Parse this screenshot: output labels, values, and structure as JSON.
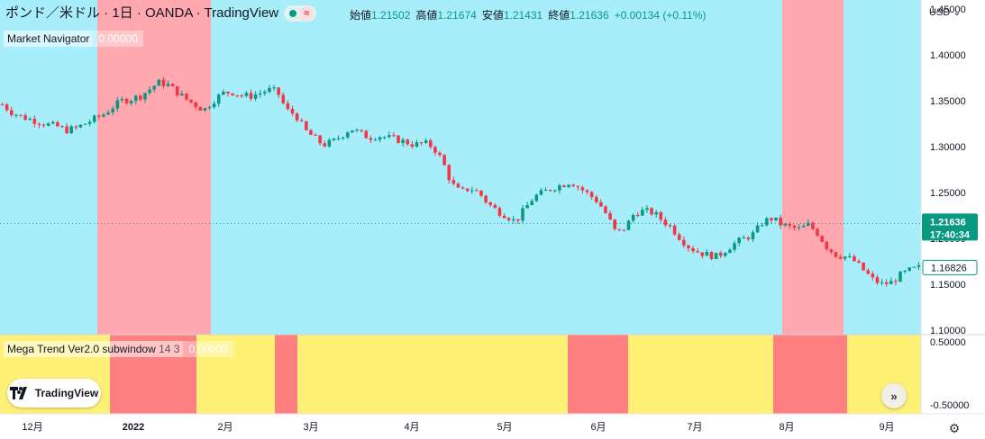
{
  "header": {
    "symbol_title": "ポンド／米ドル · 1日 · OANDA · TradingView",
    "approx_icon": "≈",
    "status_color": "#089981"
  },
  "ohlc": {
    "open_label": "始値",
    "open": "1.21502",
    "high_label": "高値",
    "high": "1.21674",
    "low_label": "安値",
    "low": "1.21431",
    "close_label": "終値",
    "close": "1.21636",
    "change": "+0.00134 (+0.11%)"
  },
  "indicator_main": {
    "name": "Market Navigator",
    "value": "0.00000"
  },
  "indicator_sub": {
    "name": "Mega Trend Ver2.0 subwindow",
    "params": "14 3",
    "value": "0.00000"
  },
  "price_axis": {
    "currency": "USD",
    "ticks": [
      "1.45000",
      "1.40000",
      "1.35000",
      "1.30000",
      "1.25000",
      "1.20000",
      "1.15000",
      "1.10000"
    ],
    "last_price": "1.21636",
    "countdown": "17:40:34",
    "marker_price": "1.16826"
  },
  "sub_axis": {
    "ticks": [
      "0.50000",
      "-0.50000"
    ]
  },
  "time_axis": {
    "labels": [
      "12月",
      "2022",
      "2月",
      "3月",
      "4月",
      "5月",
      "6月",
      "7月",
      "8月",
      "9月"
    ]
  },
  "logo": {
    "text": "TradingView"
  },
  "colors": {
    "background_bull": "#a8eefa",
    "background_bear": "#ffa8b0",
    "sub_yellow": "#fff176",
    "sub_red": "#ff8080",
    "up_candle": "#089981",
    "down_candle": "#f23645",
    "price_label_bg": "#089981"
  },
  "chart_data": {
    "type": "candlestick",
    "x_labels": [
      "12月",
      "2022",
      "2月",
      "3月",
      "4月",
      "5月",
      "6月",
      "7月",
      "8月",
      "9月"
    ],
    "ylim": [
      1.095,
      1.46
    ],
    "close_path": [
      1.346,
      1.338,
      1.333,
      1.33,
      1.327,
      1.324,
      1.322,
      1.318,
      1.32,
      1.325,
      1.33,
      1.335,
      1.343,
      1.35,
      1.352,
      1.355,
      1.362,
      1.37,
      1.368,
      1.36,
      1.352,
      1.346,
      1.34,
      1.35,
      1.358,
      1.36,
      1.356,
      1.355,
      1.358,
      1.362,
      1.36,
      1.34,
      1.335,
      1.318,
      1.31,
      1.302,
      1.305,
      1.312,
      1.32,
      1.315,
      1.31,
      1.312,
      1.31,
      1.308,
      1.305,
      1.302,
      1.304,
      1.3,
      1.285,
      1.26,
      1.25,
      1.255,
      1.25,
      1.238,
      1.23,
      1.225,
      1.218,
      1.232,
      1.245,
      1.25,
      1.255,
      1.258,
      1.262,
      1.255,
      1.248,
      1.24,
      1.225,
      1.205,
      1.212,
      1.228,
      1.23,
      1.228,
      1.22,
      1.212,
      1.2,
      1.19,
      1.185,
      1.182,
      1.18,
      1.188,
      1.195,
      1.2,
      1.205,
      1.218,
      1.222,
      1.215,
      1.212,
      1.21,
      1.215,
      1.205,
      1.19,
      1.182,
      1.18,
      1.175,
      1.165,
      1.155,
      1.15,
      1.152,
      1.16,
      1.165,
      1.168
    ]
  }
}
